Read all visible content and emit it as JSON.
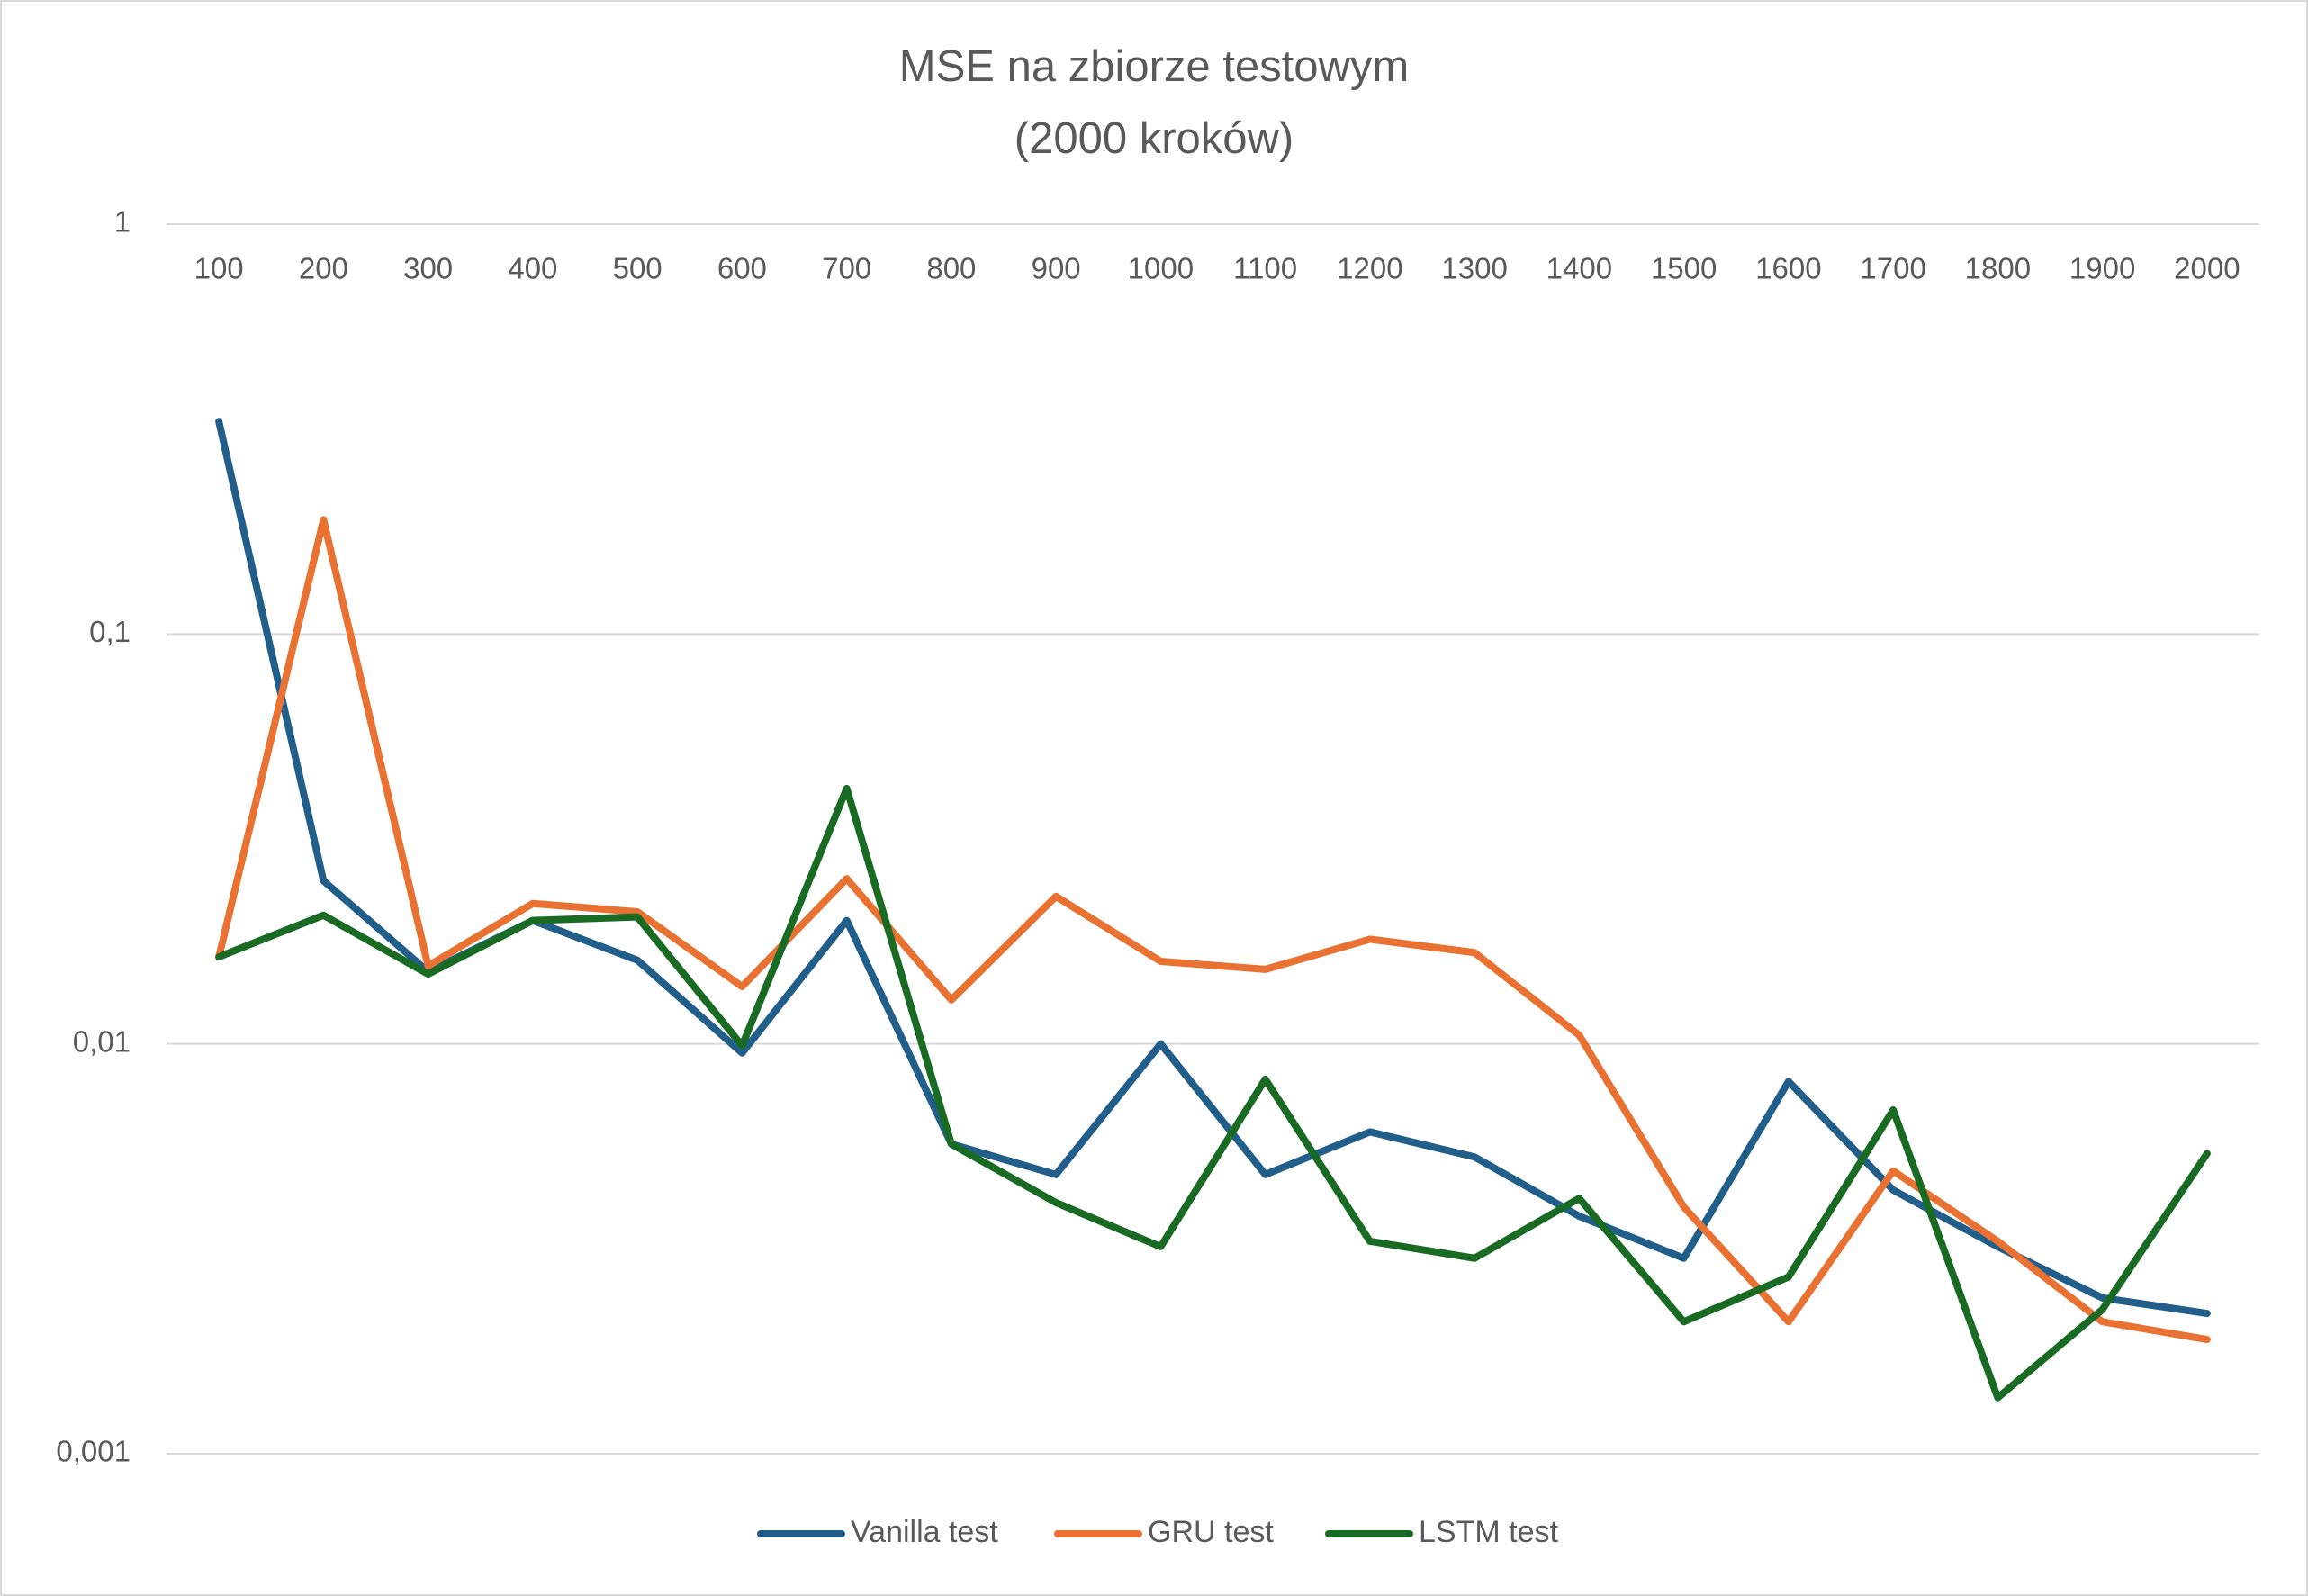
{
  "chart_data": {
    "type": "line",
    "title": [
      "MSE na zbiorze testowym",
      "(2000 kroków)"
    ],
    "categories": [
      "100",
      "200",
      "300",
      "400",
      "500",
      "600",
      "700",
      "800",
      "900",
      "1000",
      "1100",
      "1200",
      "1300",
      "1400",
      "1500",
      "1600",
      "1700",
      "1800",
      "1900",
      "2000"
    ],
    "series": [
      {
        "name": "Vanilla test",
        "color": "#215f8a",
        "values": [
          0.33,
          0.025,
          0.015,
          0.02,
          0.016,
          0.0095,
          0.02,
          0.0057,
          0.0048,
          0.01,
          0.0048,
          0.0061,
          0.0053,
          0.0038,
          0.003,
          0.0081,
          0.0044,
          0.0032,
          0.0024,
          0.0022
        ]
      },
      {
        "name": "GRU test",
        "color": "#e97132",
        "values": [
          0.0163,
          0.19,
          0.0155,
          0.022,
          0.021,
          0.0138,
          0.0253,
          0.0128,
          0.0229,
          0.0159,
          0.0152,
          0.018,
          0.0167,
          0.0105,
          0.004,
          0.0021,
          0.0049,
          0.0033,
          0.0021,
          0.0019
        ]
      },
      {
        "name": "LSTM test",
        "color": "#196b24",
        "values": [
          0.0163,
          0.0206,
          0.0148,
          0.02,
          0.0204,
          0.0099,
          0.042,
          0.0057,
          0.0041,
          0.0032,
          0.0082,
          0.0033,
          0.003,
          0.0042,
          0.0021,
          0.0027,
          0.0069,
          0.00137,
          0.00225,
          0.0054
        ]
      }
    ],
    "log_y": true,
    "ylim": [
      0.001,
      1
    ],
    "yticks": [
      {
        "value": 0.001,
        "label": "0,001"
      },
      {
        "value": 0.01,
        "label": "0,01"
      },
      {
        "value": 0.1,
        "label": "0,1"
      },
      1
    ],
    "grid": true,
    "legend": "bottom"
  }
}
